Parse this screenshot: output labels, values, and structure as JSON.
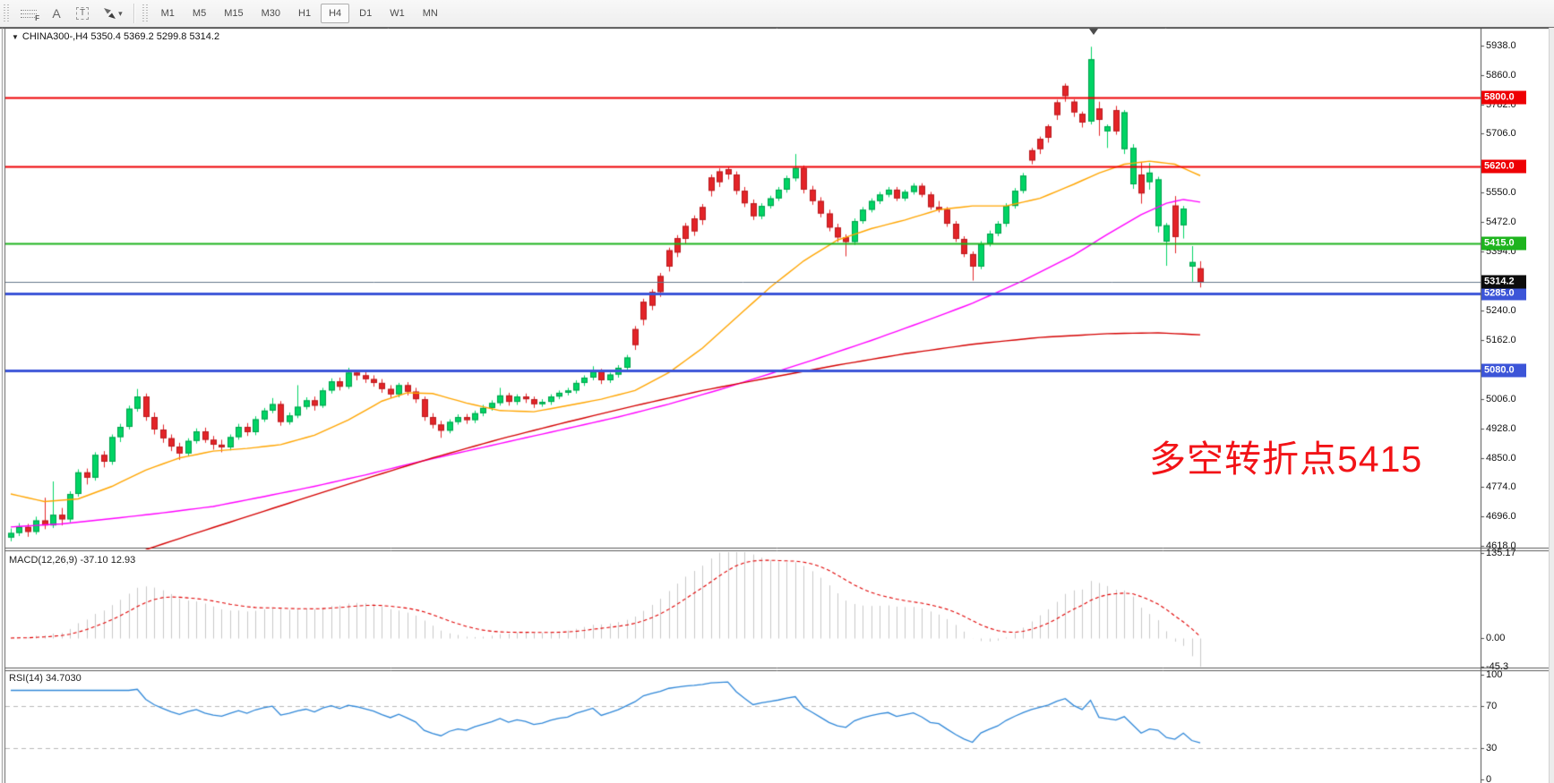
{
  "toolbar": {
    "fib_letter": "F",
    "text_label_glyph": "A",
    "text_tool_glyph": "T",
    "arrows_caret": "▾",
    "timeframes": [
      {
        "label": "M1",
        "active": false
      },
      {
        "label": "M5",
        "active": false
      },
      {
        "label": "M15",
        "active": false
      },
      {
        "label": "M30",
        "active": false
      },
      {
        "label": "H1",
        "active": false
      },
      {
        "label": "H4",
        "active": true
      },
      {
        "label": "D1",
        "active": false
      },
      {
        "label": "W1",
        "active": false
      },
      {
        "label": "MN",
        "active": false
      }
    ]
  },
  "chart": {
    "title_marker": "▼",
    "title": "CHINA300-,H4  5350.4 5369.2 5299.8 5314.2",
    "macd_label": "MACD(12,26,9) -37.10 12.93",
    "rsi_label": "RSI(14) 34.7030",
    "annotation_text": "多空转折点5415"
  },
  "axis": {
    "main_ticks": [
      "5938.0",
      "5860.0",
      "5782.0",
      "5706.0",
      "5550.0",
      "5472.0",
      "5394.0",
      "5240.0",
      "5162.0",
      "5006.0",
      "4928.0",
      "4850.0",
      "4774.0",
      "4696.0",
      "4618.0"
    ],
    "main_tick_values": [
      5938,
      5860,
      5782,
      5706,
      5550,
      5472,
      5394,
      5240,
      5162,
      5006,
      4928,
      4850,
      4774,
      4696,
      4618
    ],
    "macd_ticks": [
      {
        "value": 135.17,
        "label": "135.17"
      },
      {
        "value": 0,
        "label": "0.00"
      },
      {
        "value": -45.3,
        "label": "-45.3"
      }
    ],
    "rsi_ticks": [
      {
        "value": 100,
        "label": "100",
        "dashed": false
      },
      {
        "value": 70,
        "label": "70",
        "dashed": true
      },
      {
        "value": 30,
        "label": "30",
        "dashed": true
      },
      {
        "value": 0,
        "label": "0",
        "dashed": false
      }
    ]
  },
  "colors": {
    "bull": "#00d464",
    "bull_border": "#00a04c",
    "bear": "#e32428",
    "bear_border": "#b81b1f",
    "level_red": "#ee0004",
    "level_green": "#1eb41e",
    "level_blue": "#3c55d8",
    "current_line": "#64768a",
    "current_badge_bg": "#0c0c0c",
    "ma_fast": "#ffa construct500",
    "ma_mid": "#ff00ff",
    "ma_slow": "#d40000",
    "macd_hist": "#c9c9c9",
    "macd_signal": "#e00000",
    "rsi_line": "#2f87d8",
    "annotation": "#f21317"
  },
  "chart_data": {
    "type": "candlestick",
    "symbol": "CHINA300-",
    "timeframe": "H4",
    "last_bar": {
      "open": 5350.4,
      "high": 5369.2,
      "low": 5299.8,
      "close": 5314.2
    },
    "price_axis_range": [
      4618,
      5938
    ],
    "levels": [
      {
        "price": 5800.0,
        "label": "5800.0",
        "color": "#ee0004",
        "width": 2
      },
      {
        "price": 5620.0,
        "label": "5620.0",
        "color": "#ee0004",
        "width": 2
      },
      {
        "price": 5415.0,
        "label": "5415.0",
        "color": "#1eb41e",
        "width": 2
      },
      {
        "price": 5285.0,
        "label": "5285.0",
        "color": "#3c55d8",
        "width": 3
      },
      {
        "price": 5080.0,
        "label": "5080.0",
        "color": "#3c55d8",
        "width": 3
      }
    ],
    "current_price": {
      "price": 5314.2,
      "label": "5314.2"
    },
    "candles": [
      [
        4640,
        4664,
        4630,
        4652
      ],
      [
        4652,
        4678,
        4644,
        4668
      ],
      [
        4668,
        4676,
        4642,
        4655
      ],
      [
        4655,
        4695,
        4648,
        4685
      ],
      [
        4685,
        4745,
        4662,
        4672
      ],
      [
        4672,
        4788,
        4665,
        4700
      ],
      [
        4700,
        4718,
        4672,
        4688
      ],
      [
        4688,
        4762,
        4680,
        4755
      ],
      [
        4755,
        4820,
        4748,
        4812
      ],
      [
        4812,
        4822,
        4780,
        4798
      ],
      [
        4798,
        4865,
        4790,
        4858
      ],
      [
        4858,
        4868,
        4825,
        4840
      ],
      [
        4840,
        4912,
        4832,
        4905
      ],
      [
        4905,
        4940,
        4892,
        4932
      ],
      [
        4932,
        4988,
        4925,
        4980
      ],
      [
        4980,
        5032,
        4972,
        5012
      ],
      [
        5012,
        5020,
        4948,
        4958
      ],
      [
        4958,
        4970,
        4912,
        4925
      ],
      [
        4925,
        4938,
        4890,
        4902
      ],
      [
        4902,
        4912,
        4868,
        4880
      ],
      [
        4880,
        4890,
        4845,
        4862
      ],
      [
        4862,
        4902,
        4855,
        4895
      ],
      [
        4895,
        4928,
        4888,
        4920
      ],
      [
        4920,
        4930,
        4890,
        4898
      ],
      [
        4898,
        4908,
        4872,
        4885
      ],
      [
        4885,
        4898,
        4865,
        4878
      ],
      [
        4878,
        4912,
        4870,
        4905
      ],
      [
        4905,
        4940,
        4898,
        4932
      ],
      [
        4932,
        4942,
        4908,
        4918
      ],
      [
        4918,
        4960,
        4910,
        4952
      ],
      [
        4952,
        4982,
        4945,
        4975
      ],
      [
        4975,
        5008,
        4968,
        4992
      ],
      [
        4992,
        5000,
        4935,
        4945
      ],
      [
        4945,
        4970,
        4938,
        4962
      ],
      [
        4962,
        5042,
        4955,
        4985
      ],
      [
        4985,
        5010,
        4978,
        5002
      ],
      [
        5002,
        5012,
        4975,
        4988
      ],
      [
        4988,
        5035,
        4982,
        5028
      ],
      [
        5028,
        5060,
        5020,
        5052
      ],
      [
        5052,
        5062,
        5028,
        5038
      ],
      [
        5038,
        5088,
        5032,
        5075
      ],
      [
        5075,
        5082,
        5055,
        5068
      ],
      [
        5068,
        5078,
        5048,
        5058
      ],
      [
        5058,
        5068,
        5038,
        5048
      ],
      [
        5048,
        5058,
        5022,
        5032
      ],
      [
        5032,
        5042,
        5008,
        5018
      ],
      [
        5018,
        5048,
        5010,
        5042
      ],
      [
        5042,
        5050,
        5015,
        5025
      ],
      [
        5025,
        5035,
        4995,
        5005
      ],
      [
        5005,
        5012,
        4948,
        4958
      ],
      [
        4958,
        4968,
        4928,
        4938
      ],
      [
        4938,
        4948,
        4903,
        4922
      ],
      [
        4922,
        4952,
        4915,
        4945
      ],
      [
        4945,
        4965,
        4938,
        4958
      ],
      [
        4958,
        4966,
        4940,
        4950
      ],
      [
        4950,
        4975,
        4942,
        4968
      ],
      [
        4968,
        4990,
        4960,
        4982
      ],
      [
        4982,
        5002,
        4975,
        4995
      ],
      [
        4995,
        5035,
        4988,
        5015
      ],
      [
        5015,
        5022,
        4988,
        4998
      ],
      [
        4998,
        5018,
        4990,
        5012
      ],
      [
        5012,
        5020,
        4995,
        5005
      ],
      [
        5005,
        5012,
        4982,
        4992
      ],
      [
        4992,
        5005,
        4985,
        4998
      ],
      [
        4998,
        5018,
        4990,
        5012
      ],
      [
        5012,
        5028,
        5005,
        5022
      ],
      [
        5022,
        5035,
        5015,
        5028
      ],
      [
        5028,
        5055,
        5020,
        5048
      ],
      [
        5048,
        5068,
        5040,
        5062
      ],
      [
        5062,
        5092,
        5055,
        5078
      ],
      [
        5078,
        5085,
        5045,
        5055
      ],
      [
        5055,
        5075,
        5048,
        5070
      ],
      [
        5070,
        5095,
        5062,
        5088
      ],
      [
        5088,
        5122,
        5080,
        5115
      ],
      [
        5190,
        5198,
        5135,
        5148
      ],
      [
        5262,
        5270,
        5200,
        5215
      ],
      [
        5288,
        5295,
        5240,
        5252
      ],
      [
        5330,
        5338,
        5275,
        5288
      ],
      [
        5398,
        5405,
        5342,
        5355
      ],
      [
        5430,
        5438,
        5380,
        5392
      ],
      [
        5462,
        5470,
        5415,
        5428
      ],
      [
        5482,
        5490,
        5436,
        5448
      ],
      [
        5512,
        5520,
        5465,
        5478
      ],
      [
        5590,
        5598,
        5540,
        5555
      ],
      [
        5606,
        5614,
        5565,
        5578
      ],
      [
        5612,
        5618,
        5585,
        5598
      ],
      [
        5598,
        5606,
        5545,
        5555
      ],
      [
        5555,
        5565,
        5512,
        5522
      ],
      [
        5522,
        5532,
        5478,
        5488
      ],
      [
        5488,
        5522,
        5480,
        5515
      ],
      [
        5515,
        5542,
        5508,
        5535
      ],
      [
        5535,
        5565,
        5528,
        5558
      ],
      [
        5558,
        5595,
        5550,
        5588
      ],
      [
        5588,
        5652,
        5580,
        5615
      ],
      [
        5615,
        5622,
        5548,
        5558
      ],
      [
        5558,
        5568,
        5518,
        5528
      ],
      [
        5528,
        5538,
        5485,
        5495
      ],
      [
        5495,
        5505,
        5448,
        5458
      ],
      [
        5458,
        5468,
        5420,
        5432
      ],
      [
        5432,
        5440,
        5382,
        5420
      ],
      [
        5420,
        5482,
        5412,
        5475
      ],
      [
        5475,
        5512,
        5468,
        5505
      ],
      [
        5505,
        5535,
        5498,
        5528
      ],
      [
        5528,
        5552,
        5520,
        5545
      ],
      [
        5545,
        5565,
        5538,
        5558
      ],
      [
        5558,
        5565,
        5528,
        5535
      ],
      [
        5535,
        5558,
        5528,
        5552
      ],
      [
        5552,
        5575,
        5545,
        5568
      ],
      [
        5568,
        5575,
        5538,
        5545
      ],
      [
        5545,
        5552,
        5505,
        5512
      ],
      [
        5512,
        5528,
        5498,
        5505
      ],
      [
        5505,
        5512,
        5460,
        5468
      ],
      [
        5468,
        5475,
        5420,
        5428
      ],
      [
        5428,
        5435,
        5380,
        5388
      ],
      [
        5388,
        5395,
        5318,
        5355
      ],
      [
        5355,
        5422,
        5348,
        5415
      ],
      [
        5415,
        5450,
        5408,
        5442
      ],
      [
        5442,
        5475,
        5435,
        5468
      ],
      [
        5468,
        5522,
        5460,
        5515
      ],
      [
        5515,
        5562,
        5508,
        5555
      ],
      [
        5555,
        5602,
        5548,
        5595
      ],
      [
        5662,
        5668,
        5625,
        5635
      ],
      [
        5692,
        5698,
        5652,
        5665
      ],
      [
        5725,
        5730,
        5682,
        5695
      ],
      [
        5788,
        5795,
        5742,
        5755
      ],
      [
        5832,
        5838,
        5790,
        5805
      ],
      [
        5790,
        5796,
        5750,
        5762
      ],
      [
        5758,
        5764,
        5722,
        5735
      ],
      [
        5738,
        5935,
        5730,
        5902
      ],
      [
        5772,
        5790,
        5700,
        5742
      ],
      [
        5712,
        5730,
        5668,
        5725
      ],
      [
        5768,
        5779,
        5703,
        5712
      ],
      [
        5665,
        5768,
        5652,
        5762
      ],
      [
        5572,
        5678,
        5560,
        5668
      ],
      [
        5598,
        5631,
        5521,
        5548
      ],
      [
        5578,
        5628,
        5558,
        5603
      ],
      [
        5462,
        5592,
        5445,
        5585
      ],
      [
        5421,
        5470,
        5357,
        5464
      ],
      [
        5516,
        5541,
        5390,
        5433
      ],
      [
        5464,
        5515,
        5429,
        5508
      ],
      [
        5355,
        5409,
        5315,
        5367
      ],
      [
        5350.4,
        5369.2,
        5299.8,
        5314.2
      ]
    ],
    "moving_averages": [
      {
        "name": "ma-fast-orange",
        "color": "#ffa500",
        "anchors": [
          [
            0,
            4755
          ],
          [
            4,
            4735
          ],
          [
            8,
            4742
          ],
          [
            12,
            4775
          ],
          [
            16,
            4818
          ],
          [
            20,
            4850
          ],
          [
            24,
            4868
          ],
          [
            28,
            4875
          ],
          [
            32,
            4885
          ],
          [
            36,
            4910
          ],
          [
            40,
            4950
          ],
          [
            44,
            5000
          ],
          [
            47,
            5022
          ],
          [
            50,
            5020
          ],
          [
            54,
            4995
          ],
          [
            58,
            4975
          ],
          [
            62,
            4972
          ],
          [
            66,
            4988
          ],
          [
            70,
            5005
          ],
          [
            74,
            5028
          ],
          [
            78,
            5075
          ],
          [
            82,
            5140
          ],
          [
            86,
            5220
          ],
          [
            90,
            5300
          ],
          [
            94,
            5370
          ],
          [
            98,
            5425
          ],
          [
            102,
            5455
          ],
          [
            106,
            5478
          ],
          [
            110,
            5505
          ],
          [
            114,
            5515
          ],
          [
            118,
            5515
          ],
          [
            122,
            5535
          ],
          [
            126,
            5572
          ],
          [
            129,
            5602
          ],
          [
            132,
            5625
          ],
          [
            135,
            5633
          ],
          [
            138,
            5625
          ],
          [
            141,
            5595
          ]
        ]
      },
      {
        "name": "ma-mid-magenta",
        "color": "#ff00ff",
        "anchors": [
          [
            0,
            4668
          ],
          [
            6,
            4676
          ],
          [
            12,
            4690
          ],
          [
            18,
            4705
          ],
          [
            24,
            4722
          ],
          [
            30,
            4748
          ],
          [
            36,
            4775
          ],
          [
            42,
            4805
          ],
          [
            48,
            4838
          ],
          [
            54,
            4868
          ],
          [
            60,
            4898
          ],
          [
            66,
            4928
          ],
          [
            72,
            4958
          ],
          [
            78,
            4992
          ],
          [
            84,
            5030
          ],
          [
            90,
            5072
          ],
          [
            96,
            5115
          ],
          [
            102,
            5160
          ],
          [
            108,
            5208
          ],
          [
            114,
            5258
          ],
          [
            120,
            5318
          ],
          [
            126,
            5385
          ],
          [
            130,
            5440
          ],
          [
            134,
            5492
          ],
          [
            137,
            5522
          ],
          [
            139,
            5532
          ],
          [
            141,
            5525
          ]
        ]
      },
      {
        "name": "ma-slow-red",
        "color": "#d40000",
        "anchors": [
          [
            16,
            4608
          ],
          [
            22,
            4652
          ],
          [
            28,
            4695
          ],
          [
            34,
            4738
          ],
          [
            42,
            4795
          ],
          [
            50,
            4850
          ],
          [
            58,
            4900
          ],
          [
            66,
            4945
          ],
          [
            74,
            4988
          ],
          [
            82,
            5028
          ],
          [
            90,
            5062
          ],
          [
            98,
            5095
          ],
          [
            106,
            5125
          ],
          [
            114,
            5150
          ],
          [
            122,
            5168
          ],
          [
            130,
            5178
          ],
          [
            136,
            5180
          ],
          [
            141,
            5175
          ]
        ]
      }
    ],
    "macd": {
      "params": "12,26,9",
      "last_main": -37.1,
      "last_signal": 12.93,
      "axis_max": 135.17,
      "axis_min": -45.3
    },
    "rsi": {
      "period": 14,
      "last": 34.703,
      "levels": [
        70,
        30
      ],
      "axis_range": [
        0,
        100
      ]
    }
  }
}
